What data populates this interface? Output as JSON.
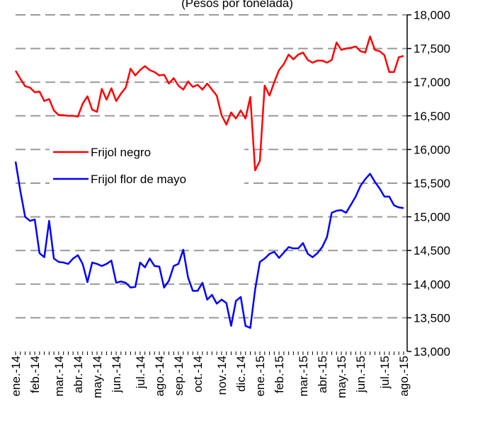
{
  "chart_data": {
    "type": "line",
    "title": "(Pesos por tonelada)",
    "categories": [
      "ene.-14",
      null,
      null,
      null,
      "feb.-14",
      null,
      null,
      null,
      null,
      "mar.-14",
      null,
      null,
      null,
      "abr.-14",
      null,
      null,
      null,
      "may.-14",
      null,
      null,
      null,
      "jun.-14",
      null,
      null,
      null,
      null,
      "jul.-14",
      null,
      null,
      null,
      "ago.-14",
      null,
      null,
      null,
      "sep.-14",
      null,
      null,
      null,
      "oct.-14",
      null,
      null,
      null,
      null,
      "nov.-14",
      null,
      null,
      null,
      "dic.-14",
      null,
      null,
      null,
      "ene.-15",
      null,
      null,
      null,
      "feb.-15",
      null,
      null,
      null,
      null,
      "mar.-15",
      null,
      null,
      null,
      "abr.-15",
      null,
      null,
      null,
      "may.-15",
      null,
      null,
      null,
      "jun.-15",
      null,
      null,
      null,
      null,
      "jul.-15",
      null,
      null,
      null,
      "ago.-15"
    ],
    "series": [
      {
        "name": "Frijol negro",
        "color": "#ff0000",
        "values": [
          17170,
          17050,
          16940,
          16920,
          16850,
          16860,
          16720,
          16750,
          16580,
          16510,
          16510,
          16500,
          16500,
          16490,
          16680,
          16790,
          16590,
          16560,
          16900,
          16740,
          16910,
          16720,
          16830,
          16920,
          17200,
          17100,
          17180,
          17240,
          17180,
          17150,
          17100,
          17110,
          16980,
          17060,
          16950,
          16890,
          17010,
          16930,
          16960,
          16890,
          16980,
          16890,
          16800,
          16510,
          16370,
          16550,
          16460,
          16580,
          16460,
          16780,
          15690,
          15830,
          16950,
          16800,
          17000,
          17180,
          17270,
          17410,
          17340,
          17410,
          17440,
          17330,
          17290,
          17320,
          17320,
          17290,
          17330,
          17590,
          17480,
          17500,
          17510,
          17530,
          17460,
          17440,
          17680,
          17480,
          17460,
          17400,
          17150,
          17150,
          17370,
          17390
        ]
      },
      {
        "name": "Frijol flor de mayo",
        "color": "#0000ff",
        "values": [
          15820,
          15380,
          15000,
          14940,
          14960,
          14460,
          14400,
          14940,
          14380,
          14330,
          14320,
          14300,
          14380,
          14430,
          14300,
          14030,
          14320,
          14300,
          14270,
          14300,
          14350,
          14020,
          14040,
          14020,
          13950,
          13960,
          14320,
          14250,
          14380,
          14270,
          14260,
          13950,
          14050,
          14270,
          14300,
          14510,
          14100,
          13900,
          13900,
          14020,
          13770,
          13840,
          13710,
          13770,
          13720,
          13380,
          13750,
          13810,
          13380,
          13350,
          13920,
          14330,
          14380,
          14450,
          14480,
          14390,
          14470,
          14550,
          14530,
          14530,
          14610,
          14450,
          14400,
          14460,
          14550,
          14700,
          15060,
          15090,
          15100,
          15060,
          15180,
          15300,
          15460,
          15560,
          15640,
          15520,
          15420,
          15300,
          15300,
          15170,
          15140,
          15130
        ]
      }
    ],
    "ylim": [
      13000,
      18000
    ],
    "yticks": [
      {
        "value": 13000,
        "label": "13,000"
      },
      {
        "value": 13500,
        "label": "13,500"
      },
      {
        "value": 14000,
        "label": "14,000"
      },
      {
        "value": 14500,
        "label": "14,500"
      },
      {
        "value": 15000,
        "label": "15,000"
      },
      {
        "value": 15500,
        "label": "15,500"
      },
      {
        "value": 16000,
        "label": "16,000"
      },
      {
        "value": 16500,
        "label": "16,500"
      },
      {
        "value": 17000,
        "label": "17,000"
      },
      {
        "value": 17500,
        "label": "17,500"
      },
      {
        "value": 18000,
        "label": "18,000"
      }
    ],
    "grid": true,
    "legend": "center-left"
  }
}
